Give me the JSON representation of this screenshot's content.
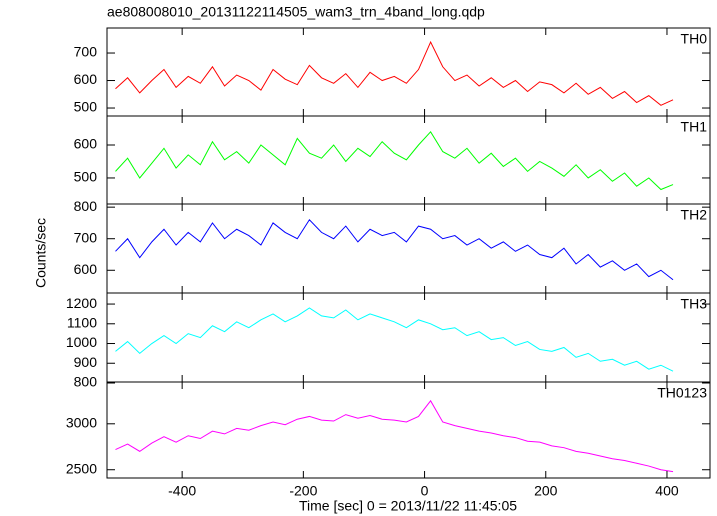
{
  "title": "ae808008010_20131122114505_wam3_trn_4band_long.qdp",
  "xlabel": "Time [sec] 0 = 2013/11/22 11:45:05",
  "ylabel": "Counts/sec",
  "chart_data": [
    {
      "type": "line",
      "x": [
        -510,
        -490,
        -470,
        -450,
        -430,
        -410,
        -390,
        -370,
        -350,
        -330,
        -310,
        -290,
        -270,
        -250,
        -230,
        -210,
        -190,
        -170,
        -150,
        -130,
        -110,
        -90,
        -70,
        -50,
        -30,
        -10,
        10,
        30,
        50,
        70,
        90,
        110,
        130,
        150,
        170,
        190,
        210,
        230,
        250,
        270,
        290,
        310,
        330,
        350,
        370,
        390,
        410
      ],
      "series": [
        {
          "name": "TH0",
          "color": "#ff0000",
          "values": [
            570,
            610,
            555,
            600,
            640,
            575,
            615,
            590,
            650,
            580,
            620,
            600,
            565,
            640,
            605,
            585,
            655,
            610,
            590,
            625,
            575,
            630,
            600,
            615,
            590,
            640,
            740,
            650,
            600,
            620,
            580,
            610,
            575,
            600,
            560,
            595,
            585,
            555,
            590,
            550,
            575,
            535,
            560,
            520,
            545,
            510,
            530
          ]
        }
      ],
      "xlim": [
        -524,
        471
      ],
      "xticks": [
        -400,
        -200,
        0,
        200,
        400
      ],
      "ylim": [
        471,
        791
      ],
      "yticks": [
        500,
        600,
        700
      ]
    },
    {
      "type": "line",
      "x": [
        -510,
        -490,
        -470,
        -450,
        -430,
        -410,
        -390,
        -370,
        -350,
        -330,
        -310,
        -290,
        -270,
        -250,
        -230,
        -210,
        -190,
        -170,
        -150,
        -130,
        -110,
        -90,
        -70,
        -50,
        -30,
        -10,
        10,
        30,
        50,
        70,
        90,
        110,
        130,
        150,
        170,
        190,
        210,
        230,
        250,
        270,
        290,
        310,
        330,
        350,
        370,
        390,
        410
      ],
      "series": [
        {
          "name": "TH1",
          "color": "#00ff00",
          "values": [
            520,
            560,
            500,
            545,
            590,
            530,
            570,
            540,
            610,
            555,
            580,
            545,
            600,
            570,
            540,
            620,
            575,
            560,
            600,
            550,
            590,
            565,
            610,
            575,
            555,
            600,
            640,
            580,
            560,
            590,
            545,
            575,
            535,
            560,
            520,
            550,
            530,
            505,
            540,
            500,
            525,
            490,
            515,
            475,
            500,
            465,
            480
          ]
        }
      ],
      "xlim": [
        -524,
        471
      ],
      "xticks": [
        -400,
        -200,
        0,
        200,
        400
      ],
      "ylim": [
        421,
        688
      ],
      "yticks": [
        500,
        600
      ]
    },
    {
      "type": "line",
      "x": [
        -510,
        -490,
        -470,
        -450,
        -430,
        -410,
        -390,
        -370,
        -350,
        -330,
        -310,
        -290,
        -270,
        -250,
        -230,
        -210,
        -190,
        -170,
        -150,
        -130,
        -110,
        -90,
        -70,
        -50,
        -30,
        -10,
        10,
        30,
        50,
        70,
        90,
        110,
        130,
        150,
        170,
        190,
        210,
        230,
        250,
        270,
        290,
        310,
        330,
        350,
        370,
        390,
        410
      ],
      "series": [
        {
          "name": "TH2",
          "color": "#0000ff",
          "values": [
            660,
            700,
            640,
            690,
            730,
            680,
            720,
            690,
            750,
            700,
            730,
            710,
            680,
            750,
            720,
            700,
            760,
            720,
            700,
            740,
            690,
            730,
            710,
            720,
            690,
            740,
            730,
            700,
            710,
            680,
            700,
            670,
            690,
            660,
            680,
            650,
            640,
            670,
            620,
            650,
            610,
            630,
            600,
            620,
            580,
            600,
            570
          ]
        }
      ],
      "xlim": [
        -524,
        471
      ],
      "xticks": [
        -400,
        -200,
        0,
        200,
        400
      ],
      "ylim": [
        528,
        810
      ],
      "yticks": [
        600,
        700,
        800
      ]
    },
    {
      "type": "line",
      "x": [
        -510,
        -490,
        -470,
        -450,
        -430,
        -410,
        -390,
        -370,
        -350,
        -330,
        -310,
        -290,
        -270,
        -250,
        -230,
        -210,
        -190,
        -170,
        -150,
        -130,
        -110,
        -90,
        -70,
        -50,
        -30,
        -10,
        10,
        30,
        50,
        70,
        90,
        110,
        130,
        150,
        170,
        190,
        210,
        230,
        250,
        270,
        290,
        310,
        330,
        350,
        370,
        390,
        410
      ],
      "series": [
        {
          "name": "TH3",
          "color": "#00ffff",
          "values": [
            960,
            1010,
            950,
            1000,
            1040,
            1000,
            1050,
            1030,
            1090,
            1060,
            1110,
            1080,
            1120,
            1150,
            1110,
            1140,
            1180,
            1140,
            1130,
            1170,
            1120,
            1150,
            1130,
            1110,
            1080,
            1120,
            1100,
            1070,
            1080,
            1040,
            1060,
            1020,
            1030,
            990,
            1010,
            970,
            960,
            980,
            930,
            950,
            910,
            920,
            890,
            910,
            870,
            890,
            860
          ]
        }
      ],
      "xlim": [
        -524,
        471
      ],
      "xticks": [
        -400,
        -200,
        0,
        200,
        400
      ],
      "ylim": [
        805,
        1256
      ],
      "yticks": [
        800,
        900,
        1000,
        1100,
        1200
      ]
    },
    {
      "type": "line",
      "x": [
        -510,
        -490,
        -470,
        -450,
        -430,
        -410,
        -390,
        -370,
        -350,
        -330,
        -310,
        -290,
        -270,
        -250,
        -230,
        -210,
        -190,
        -170,
        -150,
        -130,
        -110,
        -90,
        -70,
        -50,
        -30,
        -10,
        10,
        30,
        50,
        70,
        90,
        110,
        130,
        150,
        170,
        190,
        210,
        230,
        250,
        270,
        290,
        310,
        330,
        350,
        370,
        390,
        410
      ],
      "series": [
        {
          "name": "TH0123",
          "color": "#ff00ff",
          "values": [
            2720,
            2780,
            2700,
            2790,
            2860,
            2800,
            2870,
            2840,
            2920,
            2890,
            2950,
            2930,
            2980,
            3020,
            2990,
            3050,
            3080,
            3040,
            3030,
            3100,
            3060,
            3090,
            3050,
            3040,
            3020,
            3080,
            3250,
            3020,
            2980,
            2950,
            2920,
            2900,
            2870,
            2850,
            2810,
            2800,
            2760,
            2740,
            2700,
            2680,
            2650,
            2620,
            2600,
            2570,
            2540,
            2500,
            2480
          ]
        }
      ],
      "xlim": [
        -524,
        471
      ],
      "xticks": [
        -400,
        -200,
        0,
        200,
        400
      ],
      "ylim": [
        2410,
        3455
      ],
      "yticks": [
        2500,
        3000
      ]
    }
  ]
}
